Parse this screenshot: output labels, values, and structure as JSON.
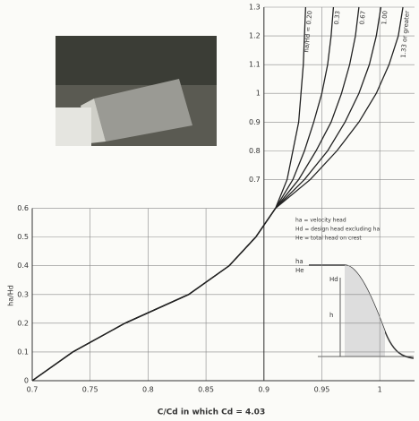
{
  "chart_data": {
    "type": "line",
    "x_label": "C/Cd in which Cd = 4.03",
    "y_label": "ha/Hd",
    "notes": [
      "ha = velocity head",
      "Hd = design head excluding ha",
      "He = total head on crest"
    ],
    "inset_labels": [
      "ha",
      "He",
      "Hd",
      "h"
    ],
    "xlim": [
      0.7,
      1.03
    ],
    "xticks": [
      0.7,
      0.75,
      0.8,
      0.85,
      0.9,
      0.95,
      1.0
    ],
    "ylim": [
      0,
      1.3
    ],
    "yticks": [
      0,
      0.1,
      0.2,
      0.3,
      0.4,
      0.5,
      0.6,
      0.7,
      0.8,
      0.9,
      1.0,
      1.1,
      1.2,
      1.3
    ],
    "yaxis_break": {
      "y": 0.6,
      "x": 0.9
    },
    "grid": true,
    "series": [
      {
        "name": "ha/Hd = 0.20",
        "color": "#222",
        "x": [
          0.7,
          0.735,
          0.78,
          0.835,
          0.87,
          0.893,
          0.91,
          0.92,
          0.925,
          0.93,
          0.932,
          0.934,
          0.935,
          0.936
        ],
        "values": [
          0,
          0.1,
          0.2,
          0.3,
          0.4,
          0.5,
          0.6,
          0.7,
          0.8,
          0.9,
          1.0,
          1.1,
          1.2,
          1.3
        ]
      },
      {
        "name": "0.33",
        "color": "#222",
        "x": [
          0.7,
          0.735,
          0.78,
          0.835,
          0.87,
          0.893,
          0.91,
          0.925,
          0.935,
          0.943,
          0.95,
          0.955,
          0.958,
          0.96
        ],
        "values": [
          0,
          0.1,
          0.2,
          0.3,
          0.4,
          0.5,
          0.6,
          0.7,
          0.8,
          0.9,
          1.0,
          1.1,
          1.2,
          1.3
        ]
      },
      {
        "name": "0.67",
        "color": "#222",
        "x": [
          0.7,
          0.735,
          0.78,
          0.835,
          0.87,
          0.893,
          0.91,
          0.93,
          0.945,
          0.958,
          0.967,
          0.974,
          0.979,
          0.982
        ],
        "values": [
          0,
          0.1,
          0.2,
          0.3,
          0.4,
          0.5,
          0.6,
          0.7,
          0.8,
          0.9,
          1.0,
          1.1,
          1.2,
          1.3
        ]
      },
      {
        "name": "1.00",
        "color": "#222",
        "x": [
          0.7,
          0.735,
          0.78,
          0.835,
          0.87,
          0.893,
          0.91,
          0.935,
          0.955,
          0.97,
          0.982,
          0.991,
          0.997,
          1.001
        ],
        "values": [
          0,
          0.1,
          0.2,
          0.3,
          0.4,
          0.5,
          0.6,
          0.7,
          0.8,
          0.9,
          1.0,
          1.1,
          1.2,
          1.3
        ]
      },
      {
        "name": "1.33 or greater",
        "color": "#222",
        "x": [
          0.7,
          0.735,
          0.78,
          0.835,
          0.87,
          0.893,
          0.91,
          0.94,
          0.963,
          0.982,
          0.997,
          1.008,
          1.016,
          1.02
        ],
        "values": [
          0,
          0.1,
          0.2,
          0.3,
          0.4,
          0.5,
          0.6,
          0.7,
          0.8,
          0.9,
          1.0,
          1.1,
          1.2,
          1.3
        ]
      }
    ]
  }
}
